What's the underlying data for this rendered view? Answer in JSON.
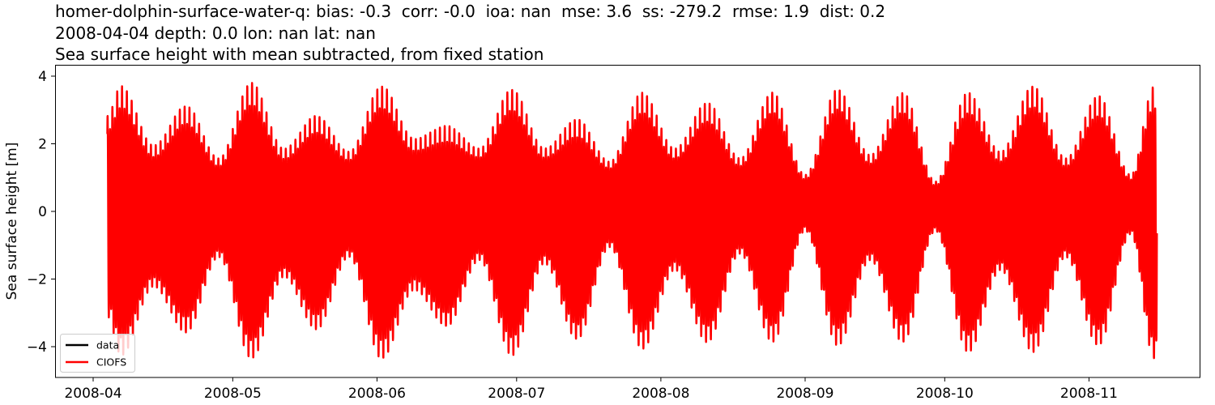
{
  "figure": {
    "title_line1": "homer-dolphin-surface-water-q: bias: -0.3  corr: -0.0  ioa: nan  mse: 3.6  ss: -279.2  rmse: 1.9  dist: 0.2",
    "title_line2": "2008-04-04 depth: 0.0 lon: nan lat: nan",
    "title_line3": "Sea surface height with mean subtracted, from fixed station",
    "ylabel": "Sea surface height [m]",
    "colors": {
      "data": "#000000",
      "model": "#ff0000",
      "axes": "#000000",
      "legend_border": "#cccccc"
    }
  },
  "legend": {
    "items": [
      {
        "label": "data",
        "color": "#000000"
      },
      {
        "label": "CIOFS",
        "color": "#ff0000"
      }
    ]
  },
  "axes": {
    "yticks": [
      {
        "value": 4,
        "label": "4"
      },
      {
        "value": 2,
        "label": "2"
      },
      {
        "value": 0,
        "label": "0"
      },
      {
        "value": -2,
        "label": "−2"
      },
      {
        "value": -4,
        "label": "−4"
      }
    ],
    "xticks": [
      {
        "day": 0,
        "label": "2008-04"
      },
      {
        "day": 30,
        "label": "2008-05"
      },
      {
        "day": 61,
        "label": "2008-06"
      },
      {
        "day": 91,
        "label": "2008-07"
      },
      {
        "day": 122,
        "label": "2008-08"
      },
      {
        "day": 153,
        "label": "2008-09"
      },
      {
        "day": 183,
        "label": "2008-10"
      },
      {
        "day": 214,
        "label": "2008-11"
      }
    ]
  },
  "chart_data": {
    "type": "line",
    "title": "homer-dolphin-surface-water-q: bias: -0.3  corr: -0.0  ioa: nan  mse: 3.6  ss: -279.2  rmse: 1.9  dist: 0.2 / 2008-04-04 depth: 0.0 lon: nan lat: nan / Sea surface height with mean subtracted, from fixed station",
    "xlabel": "",
    "ylabel": "Sea surface height [m]",
    "x_range": [
      "2008-03-23",
      "2008-11-26"
    ],
    "ylim": [
      -4.9,
      4.3
    ],
    "grid": false,
    "legend_position": "lower left",
    "series": [
      {
        "name": "data",
        "color": "#000000",
        "values": []
      },
      {
        "name": "CIOFS",
        "color": "#ff0000",
        "description": "Semidiurnal tidal signal with spring-neap modulation, 2008-04-04 to ~2008-11-15",
        "start_date": "2008-04-04",
        "end_date": "2008-11-15",
        "envelope_days_since_2008_04_01": [
          3,
          6,
          13,
          20,
          27,
          34,
          41,
          48,
          55,
          62,
          69,
          76,
          83,
          90,
          97,
          104,
          111,
          118,
          125,
          132,
          139,
          146,
          153,
          160,
          167,
          174,
          181,
          188,
          195,
          202,
          209,
          216,
          223,
          228
        ],
        "envelope_high_m": [
          2.9,
          3.8,
          2.0,
          3.2,
          1.6,
          3.9,
          1.9,
          2.9,
          1.8,
          3.8,
          2.2,
          2.6,
          1.9,
          3.7,
          1.9,
          2.8,
          1.5,
          3.6,
          1.9,
          3.3,
          1.6,
          3.6,
          1.1,
          3.7,
          1.7,
          3.6,
          0.9,
          3.6,
          1.8,
          3.8,
          1.6,
          3.5,
          1.1,
          3.8
        ],
        "envelope_low_m": [
          -3.2,
          -4.4,
          -2.3,
          -3.7,
          -1.4,
          -4.5,
          -2.0,
          -3.6,
          -1.4,
          -4.5,
          -2.4,
          -3.5,
          -1.5,
          -4.4,
          -1.6,
          -3.9,
          -1.1,
          -4.2,
          -1.8,
          -4.0,
          -1.3,
          -4.0,
          -0.6,
          -4.1,
          -1.5,
          -4.0,
          -0.6,
          -4.3,
          -1.8,
          -4.3,
          -1.4,
          -4.1,
          -0.7,
          -4.5
        ]
      }
    ]
  }
}
